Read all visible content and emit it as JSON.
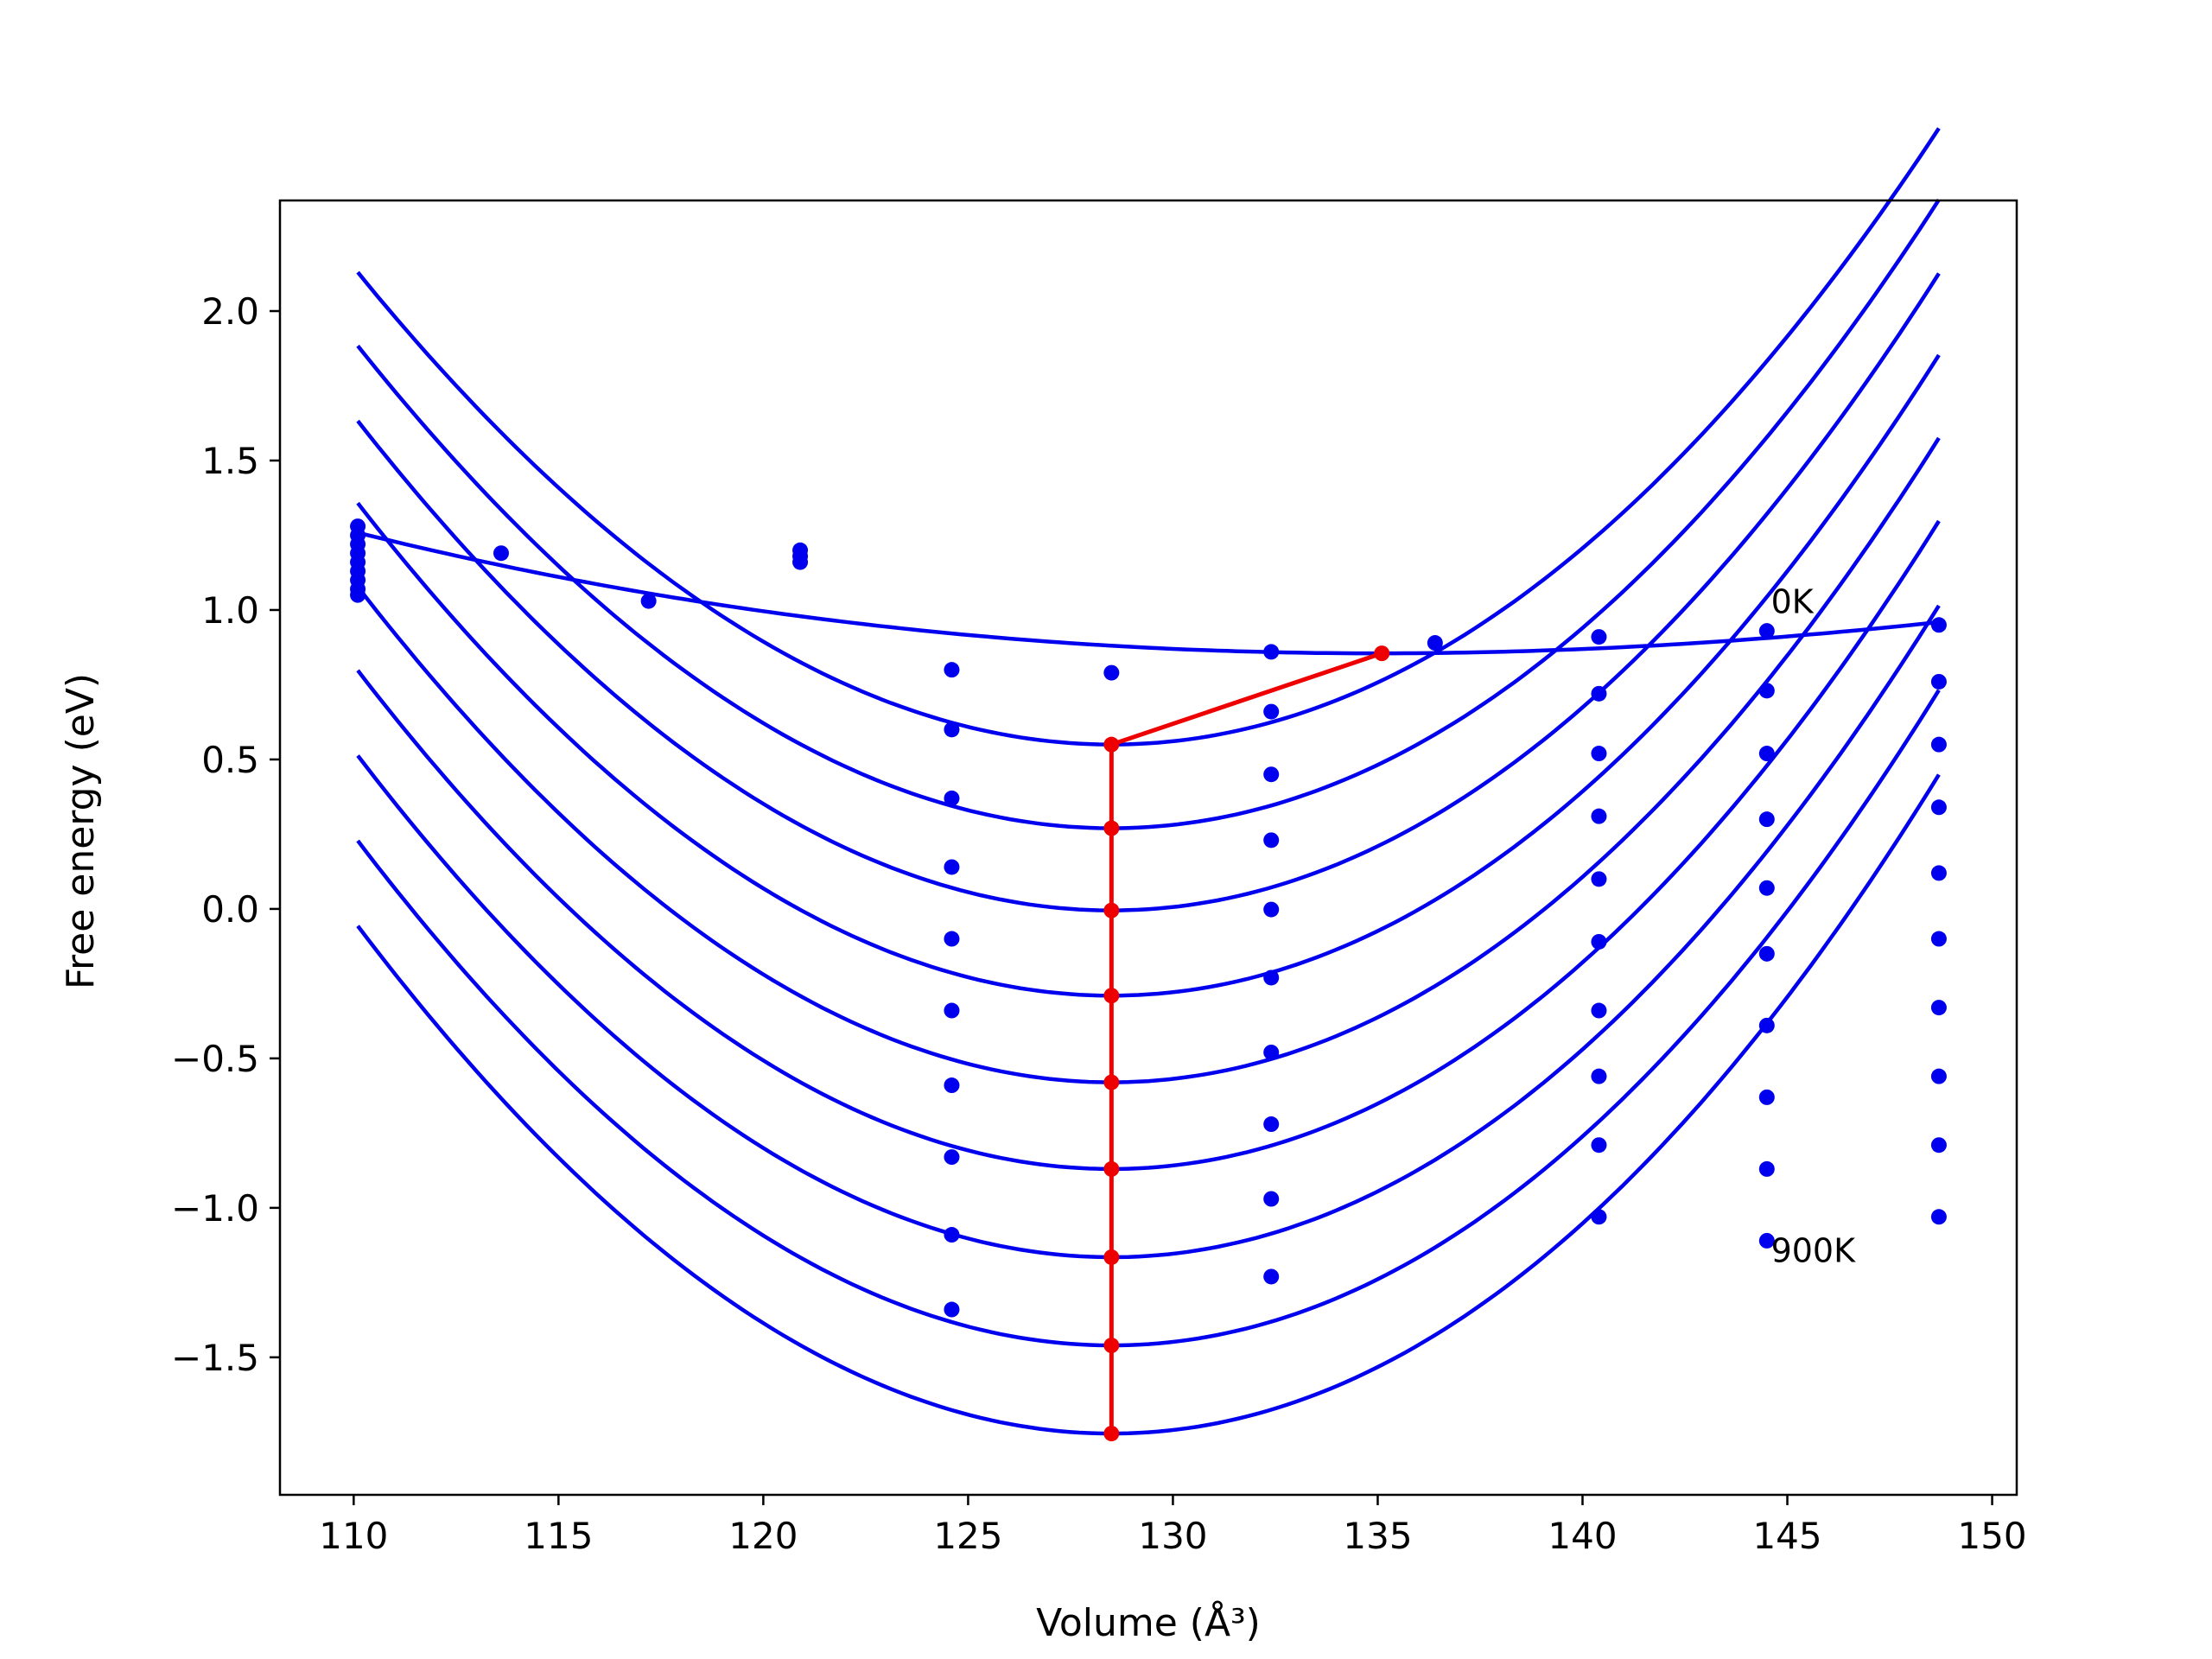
{
  "chart_data": {
    "type": "scatter",
    "title": "",
    "xlabel": "Volume (Å³)",
    "ylabel": "Free energy (eV)",
    "xlim": [
      108.2,
      150.6
    ],
    "ylim": [
      -1.96,
      2.37
    ],
    "xticks": [
      110,
      115,
      120,
      125,
      130,
      135,
      140,
      145,
      150
    ],
    "xtick_labels": [
      "110",
      "115",
      "120",
      "125",
      "130",
      "135",
      "140",
      "145",
      "150"
    ],
    "yticks": [
      -1.5,
      -1.0,
      -0.5,
      0.0,
      0.5,
      1.0,
      1.5,
      2.0
    ],
    "ytick_labels": [
      "−1.5",
      "−1.0",
      "−0.5",
      "0.0",
      "0.5",
      "1.0",
      "1.5",
      "2.0"
    ],
    "grid": false,
    "legend": "none",
    "colors": {
      "fit": "#0000ee",
      "points": "#0000ee",
      "min_path": "#ee0000"
    },
    "annotations": [
      {
        "text": "0K",
        "x": 144.6,
        "y": 1.03
      },
      {
        "text": "900K",
        "x": 144.6,
        "y": -1.14
      }
    ],
    "fit_curves": [
      {
        "x_range": [
          110.1,
          148.7
        ],
        "x0": 135.0,
        "f0": 0.855,
        "a": 0.00059,
        "b": -2.45e-06
      },
      {
        "x_range": [
          110.1,
          148.7
        ],
        "x0": 128.5,
        "f0": 0.55,
        "a": 0.00485,
        "b": 1e-05
      },
      {
        "x_range": [
          110.1,
          148.7
        ],
        "x0": 128.5,
        "f0": 0.27,
        "a": 0.00495,
        "b": 1e-05
      },
      {
        "x_range": [
          110.1,
          148.7
        ],
        "x0": 128.5,
        "f0": -0.005,
        "a": 0.00502,
        "b": 1e-05
      },
      {
        "x_range": [
          110.1,
          148.7
        ],
        "x0": 128.5,
        "f0": -0.29,
        "a": 0.00505,
        "b": 1e-05
      },
      {
        "x_range": [
          110.1,
          148.7
        ],
        "x0": 128.5,
        "f0": -0.58,
        "a": 0.00508,
        "b": 1e-05
      },
      {
        "x_range": [
          110.1,
          148.7
        ],
        "x0": 128.5,
        "f0": -0.87,
        "a": 0.00511,
        "b": 1e-05
      },
      {
        "x_range": [
          110.1,
          148.7
        ],
        "x0": 128.5,
        "f0": -1.165,
        "a": 0.00514,
        "b": 1e-05
      },
      {
        "x_range": [
          110.1,
          148.7
        ],
        "x0": 128.5,
        "f0": -1.46,
        "a": 0.00517,
        "b": 1e-05
      },
      {
        "x_range": [
          110.1,
          148.7
        ],
        "x0": 128.5,
        "f0": -1.755,
        "a": 0.0052,
        "b": 1e-05
      }
    ],
    "points": [
      [
        110.1,
        1.28
      ],
      [
        110.1,
        1.25
      ],
      [
        110.1,
        1.22
      ],
      [
        110.1,
        1.19
      ],
      [
        110.1,
        1.16
      ],
      [
        110.1,
        1.13
      ],
      [
        110.1,
        1.1
      ],
      [
        110.1,
        1.07
      ],
      [
        110.1,
        1.05
      ],
      [
        113.6,
        1.19
      ],
      [
        117.2,
        1.03
      ],
      [
        120.9,
        1.2
      ],
      [
        120.9,
        1.18
      ],
      [
        120.9,
        1.16
      ],
      [
        124.6,
        0.8
      ],
      [
        124.6,
        0.6
      ],
      [
        124.6,
        0.37
      ],
      [
        124.6,
        0.14
      ],
      [
        124.6,
        -0.1
      ],
      [
        124.6,
        -0.34
      ],
      [
        124.6,
        -0.59
      ],
      [
        124.6,
        -0.83
      ],
      [
        124.6,
        -1.09
      ],
      [
        124.6,
        -1.34
      ],
      [
        128.5,
        0.79
      ],
      [
        132.4,
        0.86
      ],
      [
        132.4,
        0.66
      ],
      [
        132.4,
        0.45
      ],
      [
        132.4,
        0.23
      ],
      [
        132.4,
        -0.002
      ],
      [
        132.4,
        -0.23
      ],
      [
        132.4,
        -0.48
      ],
      [
        132.4,
        -0.72
      ],
      [
        132.4,
        -0.97
      ],
      [
        132.4,
        -1.23
      ],
      [
        136.4,
        0.89
      ],
      [
        140.4,
        0.91
      ],
      [
        140.4,
        0.72
      ],
      [
        140.4,
        0.52
      ],
      [
        140.4,
        0.31
      ],
      [
        140.4,
        0.1
      ],
      [
        140.4,
        -0.11
      ],
      [
        140.4,
        -0.34
      ],
      [
        140.4,
        -0.56
      ],
      [
        140.4,
        -0.79
      ],
      [
        140.4,
        -1.03
      ],
      [
        144.5,
        0.93
      ],
      [
        144.5,
        0.73
      ],
      [
        144.5,
        0.52
      ],
      [
        144.5,
        0.3
      ],
      [
        144.5,
        0.07
      ],
      [
        144.5,
        -0.15
      ],
      [
        144.5,
        -0.39
      ],
      [
        144.5,
        -0.63
      ],
      [
        144.5,
        -0.87
      ],
      [
        144.5,
        -1.11
      ],
      [
        148.7,
        0.95
      ],
      [
        148.7,
        0.76
      ],
      [
        148.7,
        0.55
      ],
      [
        148.7,
        0.34
      ],
      [
        148.7,
        0.12
      ],
      [
        148.7,
        -0.1
      ],
      [
        148.7,
        -0.33
      ],
      [
        148.7,
        -0.56
      ],
      [
        148.7,
        -0.79
      ],
      [
        148.7,
        -1.03
      ]
    ],
    "min_path": [
      [
        135.1,
        0.855
      ],
      [
        128.5,
        0.55
      ],
      [
        128.5,
        0.27
      ],
      [
        128.5,
        -0.005
      ],
      [
        128.5,
        -0.29
      ],
      [
        128.5,
        -0.58
      ],
      [
        128.5,
        -0.87
      ],
      [
        128.5,
        -1.165
      ],
      [
        128.5,
        -1.46
      ],
      [
        128.5,
        -1.755
      ]
    ]
  }
}
